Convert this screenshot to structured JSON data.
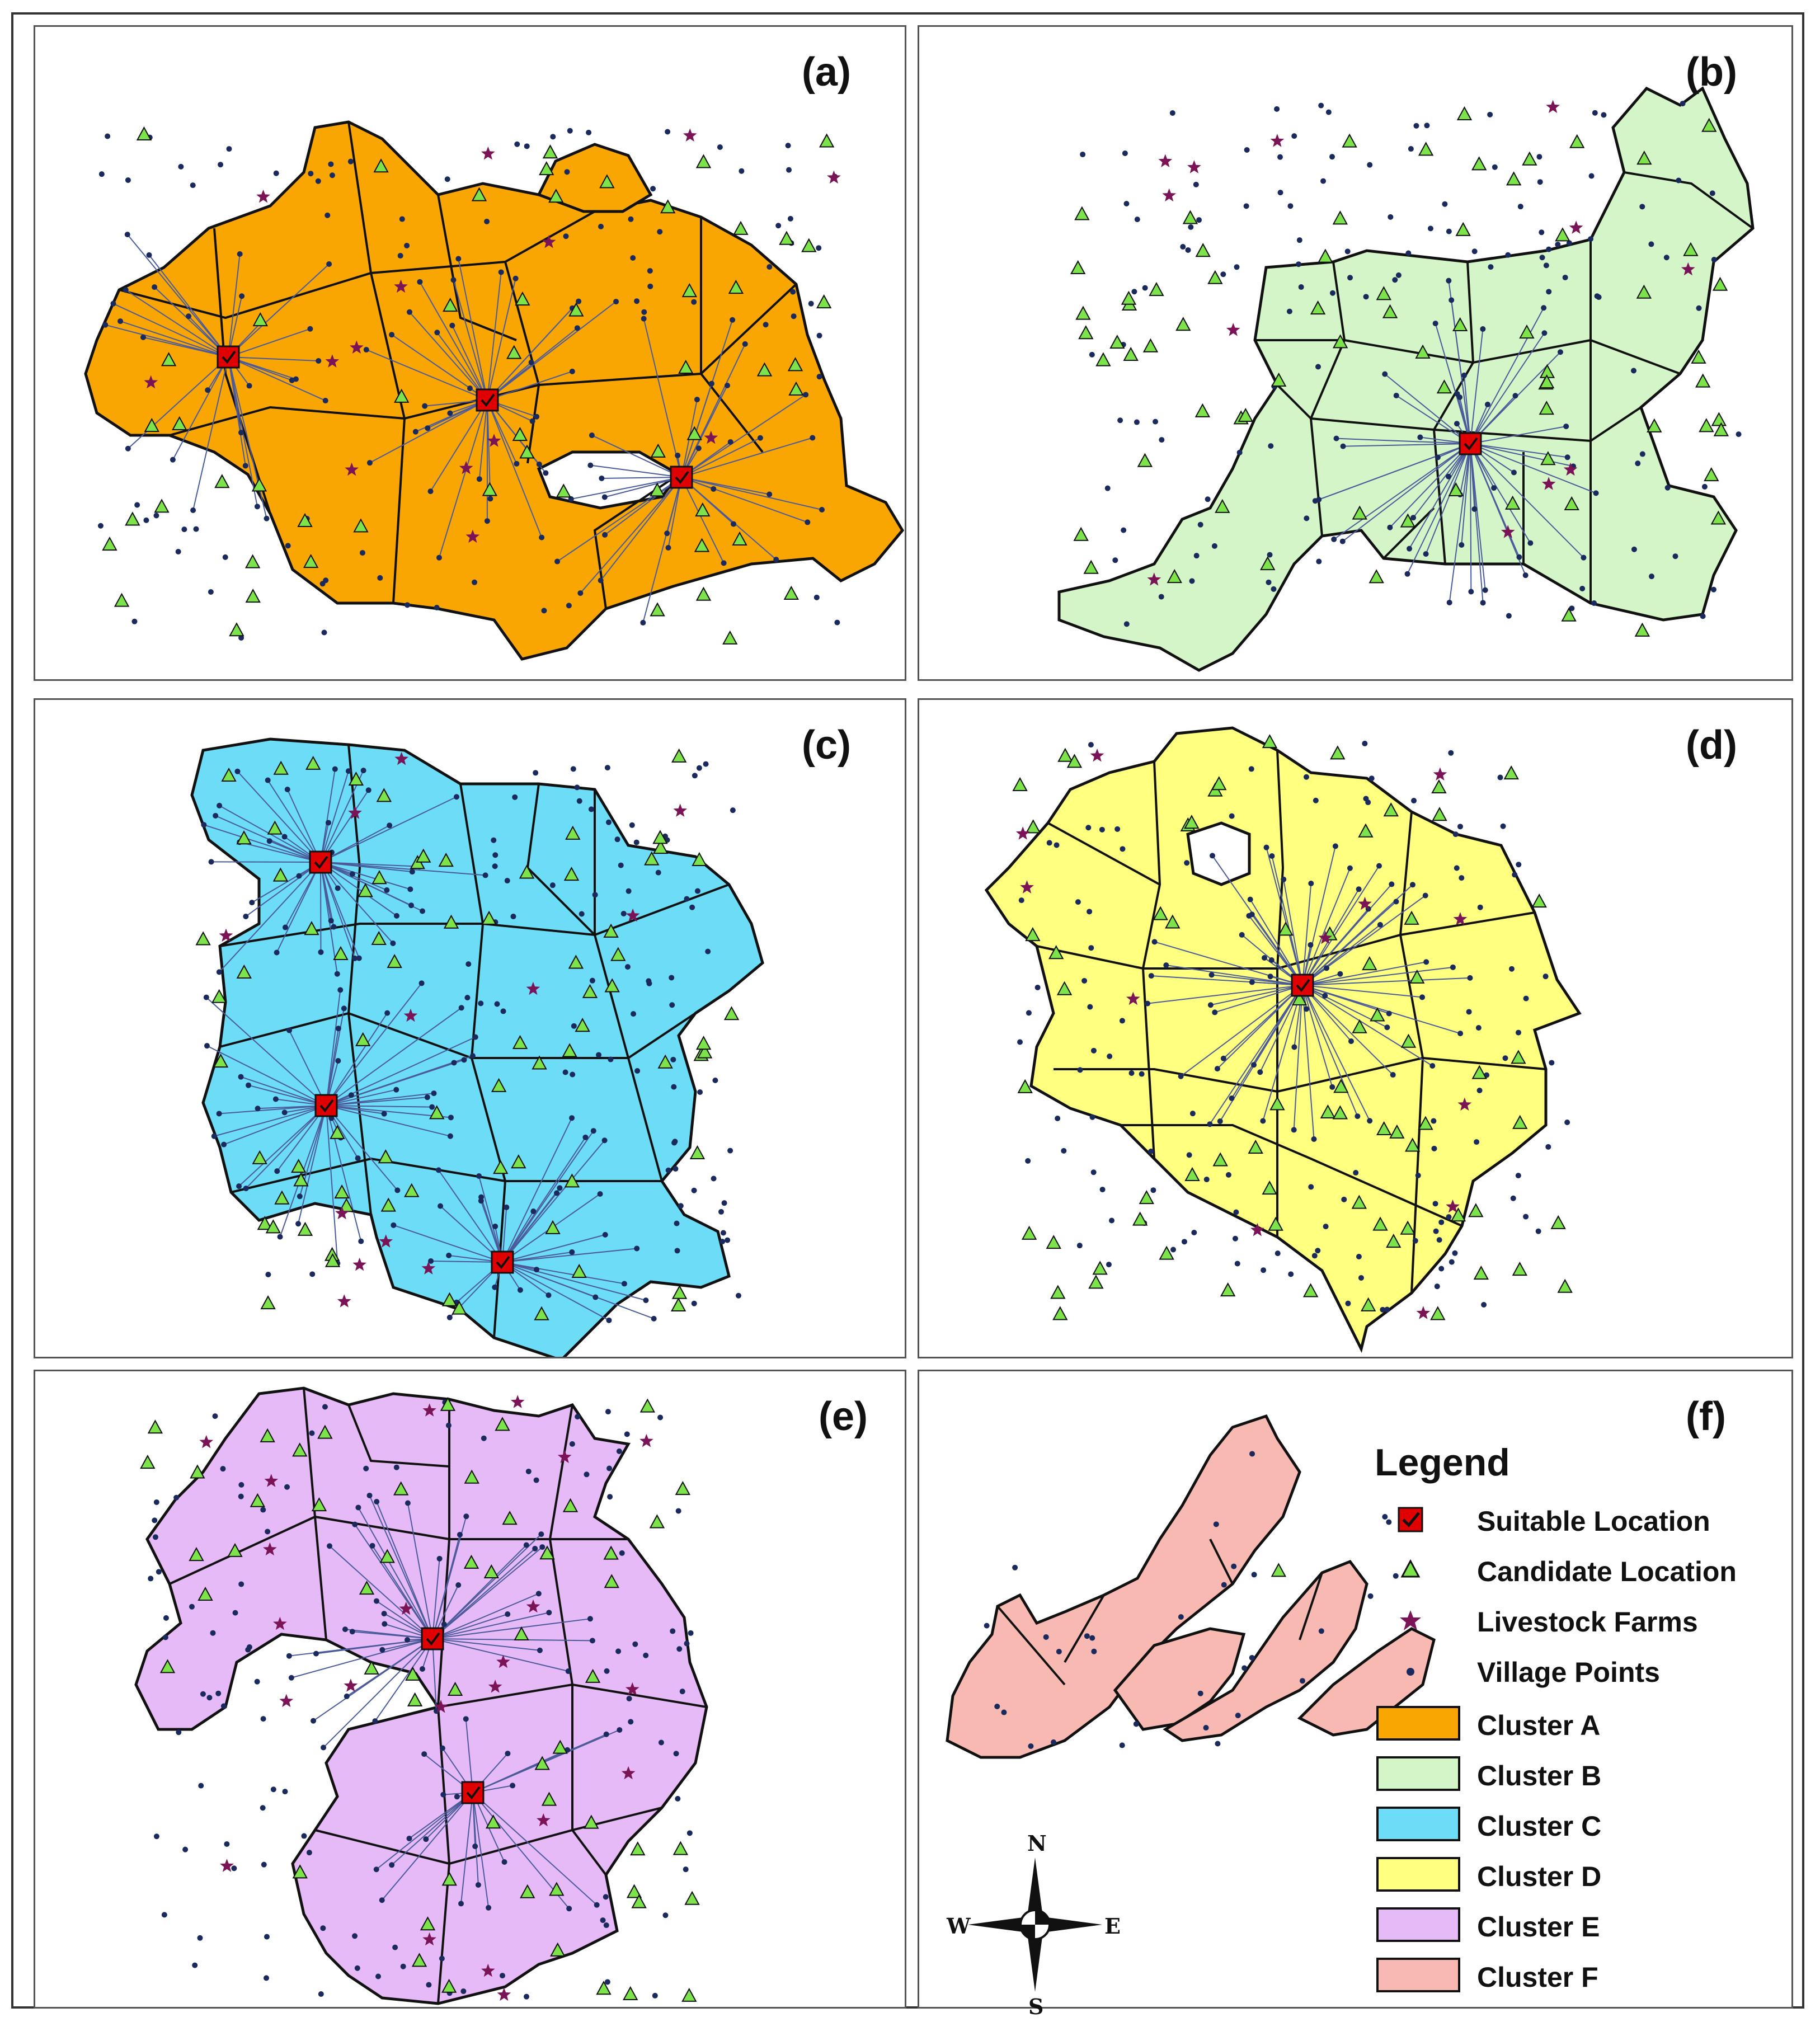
{
  "panels": [
    {
      "label": "(a)",
      "cluster": "A",
      "color": "#F9A602"
    },
    {
      "label": "(b)",
      "cluster": "B",
      "color": "#D4F5C8"
    },
    {
      "label": "(c)",
      "cluster": "C",
      "color": "#6DDCF7"
    },
    {
      "label": "(d)",
      "cluster": "D",
      "color": "#FFFF80"
    },
    {
      "label": "(e)",
      "cluster": "E",
      "color": "#E6BAF7"
    },
    {
      "label": "(f)",
      "cluster": "F",
      "color": "#F8B9B2"
    }
  ],
  "legend": {
    "title": "Legend",
    "items": [
      {
        "label": "Suitable Location",
        "icon": "red-checkbox-icon"
      },
      {
        "label": "Candidate Location",
        "icon": "green-triangle-icon"
      },
      {
        "label": "Livestock Farms",
        "icon": "star-icon"
      },
      {
        "label": "Village Points",
        "icon": "dot-icon"
      }
    ],
    "clusters": [
      {
        "label": "Cluster A",
        "color": "#F9A602"
      },
      {
        "label": "Cluster B",
        "color": "#D4F5C8"
      },
      {
        "label": "Cluster C",
        "color": "#6DDCF7"
      },
      {
        "label": "Cluster D",
        "color": "#FFFF80"
      },
      {
        "label": "Cluster E",
        "color": "#E6BAF7"
      },
      {
        "label": "Cluster F",
        "color": "#F8B9B2"
      }
    ]
  },
  "compass": {
    "n": "N",
    "s": "S",
    "e": "E",
    "w": "W"
  },
  "colors": {
    "suitable": "#E00000",
    "candidate": "#7CE34B",
    "livestock": "#7A1457",
    "village": "#1A2A5C",
    "line": "#4A5A9A"
  }
}
